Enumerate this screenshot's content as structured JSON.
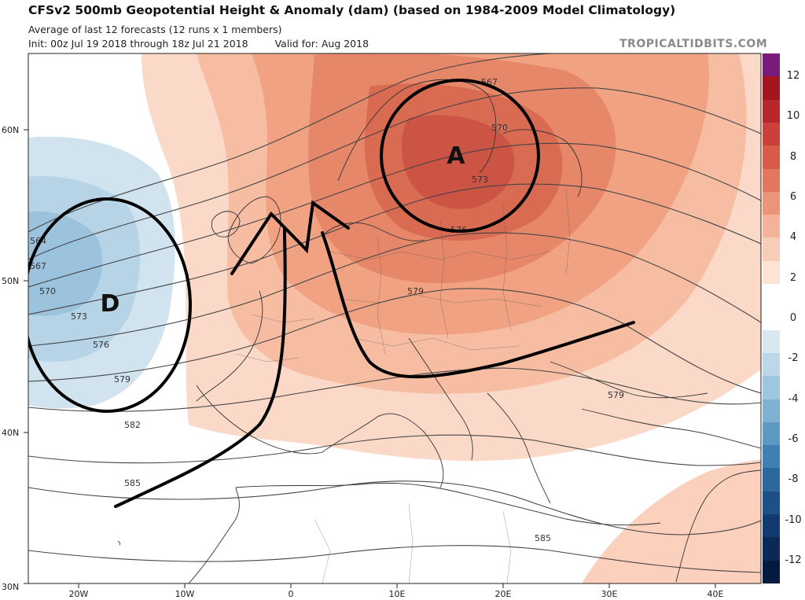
{
  "header": {
    "title": "CFSv2 500mb Geopotential Height & Anomaly (dam) (based on 1984-2009 Model Climatology)",
    "subtitle": "Average of last 12 forecasts (12 runs x 1 members)",
    "init": "Init: 00z Jul 19 2018 through 18z Jul 21 2018",
    "valid": "Valid for: Aug 2018",
    "brand": "TROPICALTIDBITS.COM"
  },
  "map": {
    "region": "Europe and North Atlantic",
    "lat_labels": [
      "60N",
      "50N",
      "40N",
      "30N"
    ],
    "lon_labels": [
      "20W",
      "10W",
      "0",
      "10E",
      "20E",
      "30E",
      "40E"
    ],
    "contour_labels": [
      "564",
      "567",
      "570",
      "573",
      "576",
      "579",
      "582",
      "585",
      "567",
      "570",
      "573",
      "576",
      "579",
      "579",
      "585"
    ],
    "annotations": {
      "high_label": "A",
      "low_label": "D"
    }
  },
  "colorbar": {
    "labels": [
      "12",
      "10",
      "8",
      "6",
      "4",
      "2",
      "0",
      "-2",
      "-4",
      "-6",
      "-8",
      "-10",
      "-12"
    ],
    "colors": [
      "#7a1a7a",
      "#a3161f",
      "#b8272b",
      "#cc3f3a",
      "#d95a48",
      "#e3775e",
      "#ec9477",
      "#f3b299",
      "#f8cdb8",
      "#fde3d6",
      "#ffffff",
      "#ffffff",
      "#d9e8f0",
      "#bcd8e8",
      "#9fc6df",
      "#7fb1d3",
      "#5e99c4",
      "#3f80b4",
      "#2c67a0",
      "#1d4f89",
      "#123a70",
      "#0b2857",
      "#061a40"
    ]
  }
}
